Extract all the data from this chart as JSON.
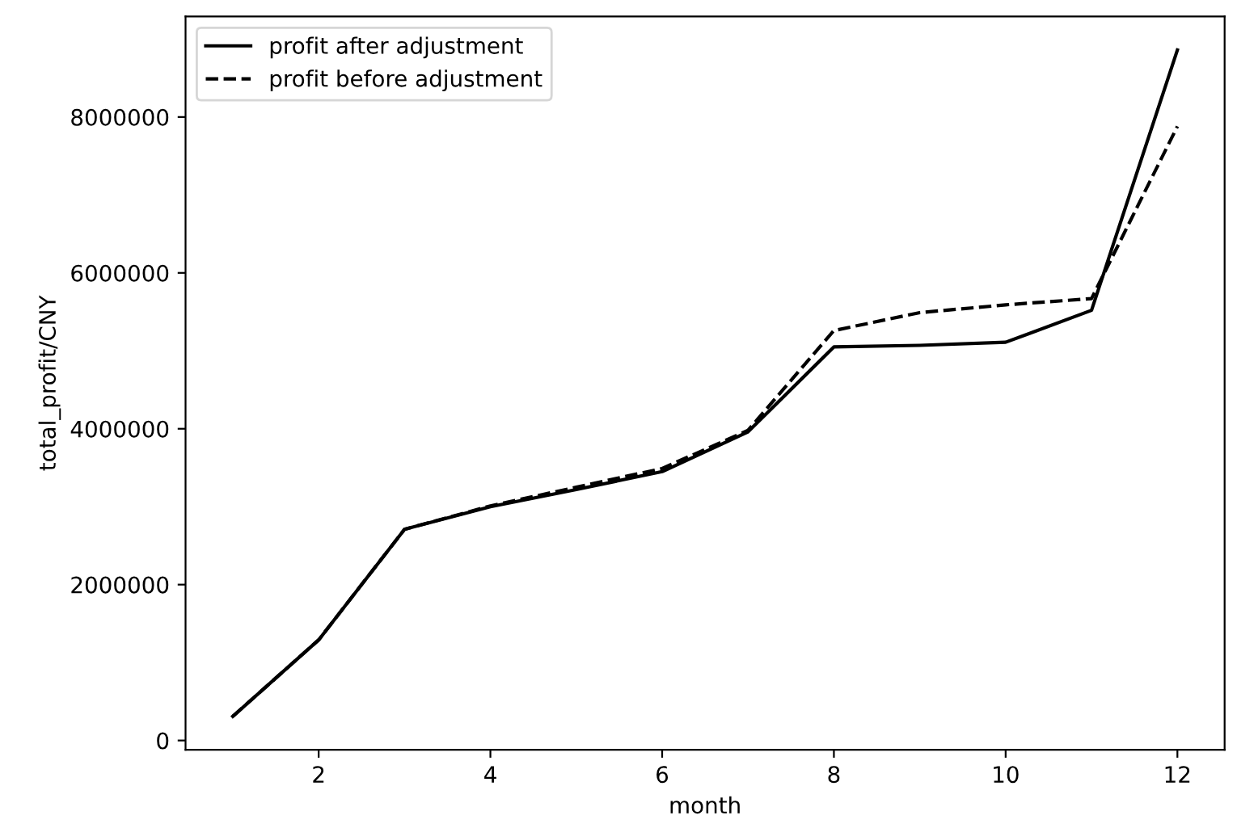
{
  "chart_data": {
    "type": "line",
    "xlabel": "month",
    "ylabel": "total_profit/CNY",
    "x": [
      1,
      2,
      3,
      4,
      5,
      6,
      7,
      8,
      9,
      10,
      11,
      12
    ],
    "series": [
      {
        "name": "profit after adjustment",
        "color": "#000000",
        "line_style": "solid",
        "values": [
          310000,
          1290000,
          2710000,
          3000000,
          3220000,
          3450000,
          3960000,
          5050000,
          5070000,
          5110000,
          5520000,
          8860000
        ]
      },
      {
        "name": "profit before adjustment",
        "color": "#000000",
        "line_style": "dashed",
        "values": [
          310000,
          1290000,
          2710000,
          3010000,
          3250000,
          3490000,
          3980000,
          5260000,
          5490000,
          5590000,
          5670000,
          7880000
        ]
      }
    ],
    "xlim": [
      0.45,
      12.55
    ],
    "ylim": [
      -120000,
      9290000
    ],
    "xticks": [
      2,
      4,
      6,
      8,
      10,
      12
    ],
    "yticks": [
      0,
      2000000,
      4000000,
      6000000,
      8000000
    ],
    "grid": false,
    "legend": "top left",
    "marker": "none"
  }
}
